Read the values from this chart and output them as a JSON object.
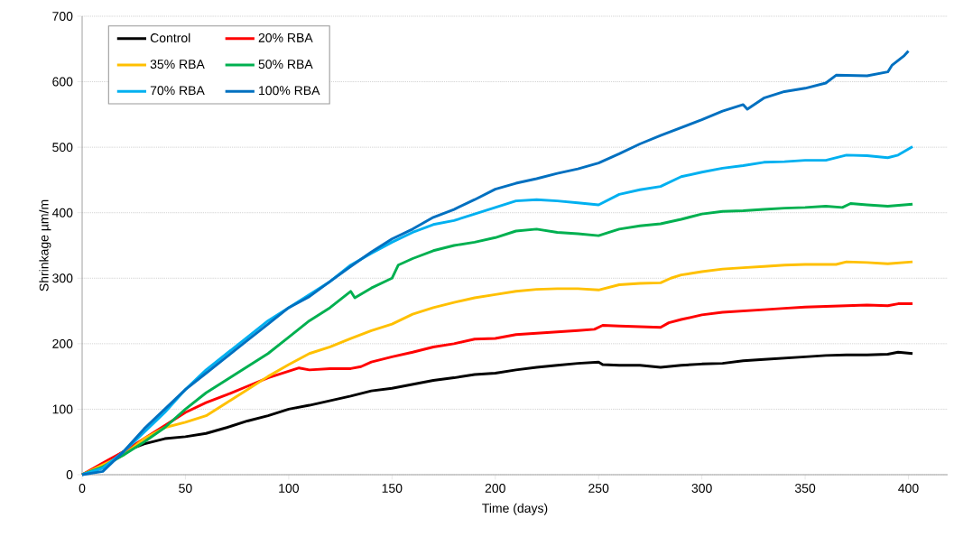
{
  "chart_data": {
    "type": "line",
    "xlabel": "Time (days)",
    "ylabel": "Shrinkage µm/m",
    "xlim": [
      0,
      419
    ],
    "ylim": [
      0,
      700
    ],
    "xticks": [
      0,
      50,
      100,
      150,
      200,
      250,
      300,
      350,
      400
    ],
    "yticks": [
      0,
      100,
      200,
      300,
      400,
      500,
      600,
      700
    ],
    "grid": "y",
    "legend": "top left",
    "marker": "none",
    "line_style": "solid",
    "series": [
      {
        "name": "Control",
        "color": "#000000",
        "x": [
          0,
          10,
          20,
          30,
          40,
          50,
          60,
          70,
          80,
          90,
          100,
          110,
          120,
          130,
          140,
          150,
          160,
          170,
          180,
          190,
          200,
          210,
          220,
          230,
          240,
          250,
          252,
          260,
          270,
          280,
          290,
          300,
          310,
          320,
          330,
          340,
          350,
          360,
          370,
          380,
          390,
          395,
          402
        ],
        "values": [
          0,
          15,
          35,
          47,
          55,
          58,
          63,
          72,
          82,
          90,
          100,
          106,
          113,
          120,
          128,
          132,
          138,
          144,
          148,
          153,
          155,
          160,
          164,
          167,
          170,
          172,
          168,
          167,
          167,
          164,
          167,
          169,
          170,
          174,
          176,
          178,
          180,
          182,
          183,
          183,
          184,
          187,
          185
        ]
      },
      {
        "name": "20% RBA",
        "color": "#ff0000",
        "x": [
          0,
          10,
          20,
          30,
          40,
          50,
          60,
          70,
          80,
          90,
          100,
          105,
          110,
          120,
          130,
          135,
          140,
          150,
          160,
          170,
          180,
          190,
          200,
          210,
          220,
          230,
          240,
          248,
          252,
          260,
          270,
          280,
          284,
          290,
          300,
          310,
          320,
          330,
          340,
          350,
          360,
          370,
          380,
          390,
          395,
          402
        ],
        "values": [
          0,
          18,
          35,
          55,
          75,
          95,
          110,
          122,
          135,
          148,
          158,
          163,
          160,
          162,
          162,
          165,
          172,
          180,
          187,
          195,
          200,
          207,
          208,
          214,
          216,
          218,
          220,
          222,
          228,
          227,
          226,
          225,
          232,
          237,
          244,
          248,
          250,
          252,
          254,
          256,
          257,
          258,
          259,
          258,
          261,
          261
        ]
      },
      {
        "name": "35% RBA",
        "color": "#ffc000",
        "x": [
          0,
          10,
          20,
          30,
          40,
          50,
          60,
          70,
          80,
          90,
          100,
          110,
          120,
          130,
          140,
          150,
          160,
          170,
          180,
          190,
          200,
          210,
          220,
          230,
          240,
          250,
          260,
          270,
          280,
          285,
          290,
          300,
          310,
          320,
          330,
          340,
          350,
          360,
          365,
          370,
          380,
          390,
          402
        ],
        "values": [
          0,
          15,
          30,
          55,
          72,
          80,
          90,
          110,
          130,
          150,
          168,
          185,
          195,
          208,
          220,
          230,
          245,
          255,
          263,
          270,
          275,
          280,
          283,
          284,
          284,
          282,
          290,
          292,
          293,
          300,
          305,
          310,
          314,
          316,
          318,
          320,
          321,
          321,
          321,
          325,
          324,
          322,
          325
        ]
      },
      {
        "name": "50% RBA",
        "color": "#00b050",
        "x": [
          0,
          10,
          20,
          30,
          40,
          50,
          60,
          70,
          80,
          90,
          100,
          110,
          120,
          130,
          132,
          140,
          150,
          153,
          160,
          170,
          180,
          190,
          200,
          210,
          220,
          230,
          240,
          250,
          260,
          270,
          280,
          290,
          300,
          310,
          320,
          330,
          340,
          350,
          360,
          368,
          372,
          380,
          390,
          402
        ],
        "values": [
          0,
          12,
          30,
          50,
          72,
          100,
          125,
          145,
          165,
          185,
          210,
          235,
          255,
          280,
          270,
          285,
          300,
          320,
          330,
          342,
          350,
          355,
          362,
          372,
          375,
          370,
          368,
          365,
          375,
          380,
          383,
          390,
          398,
          402,
          403,
          405,
          407,
          408,
          410,
          408,
          414,
          412,
          410,
          413
        ]
      },
      {
        "name": "70% RBA",
        "color": "#00b0f0",
        "x": [
          0,
          10,
          20,
          30,
          40,
          50,
          60,
          70,
          80,
          90,
          100,
          110,
          120,
          130,
          140,
          150,
          160,
          170,
          180,
          190,
          200,
          210,
          220,
          230,
          240,
          250,
          260,
          270,
          280,
          290,
          300,
          310,
          320,
          330,
          340,
          350,
          360,
          370,
          380,
          390,
          395,
          402
        ],
        "values": [
          0,
          10,
          35,
          65,
          95,
          130,
          160,
          185,
          210,
          235,
          255,
          275,
          295,
          320,
          338,
          355,
          370,
          382,
          388,
          398,
          408,
          418,
          420,
          418,
          415,
          412,
          428,
          435,
          440,
          455,
          462,
          468,
          472,
          477,
          478,
          480,
          480,
          488,
          487,
          484,
          488,
          501
        ]
      },
      {
        "name": "100% RBA",
        "color": "#0070c0",
        "x": [
          0,
          10,
          20,
          30,
          40,
          50,
          60,
          70,
          80,
          90,
          100,
          110,
          120,
          130,
          140,
          150,
          160,
          170,
          180,
          190,
          200,
          210,
          220,
          230,
          240,
          250,
          260,
          270,
          280,
          290,
          300,
          310,
          320,
          322,
          330,
          340,
          350,
          360,
          365,
          380,
          390,
          392,
          398,
          400
        ],
        "values": [
          0,
          5,
          35,
          70,
          100,
          130,
          155,
          180,
          205,
          230,
          255,
          272,
          295,
          318,
          340,
          360,
          375,
          393,
          405,
          420,
          436,
          445,
          452,
          460,
          467,
          476,
          490,
          505,
          518,
          530,
          542,
          555,
          565,
          558,
          575,
          585,
          590,
          598,
          610,
          609,
          615,
          625,
          640,
          647
        ]
      }
    ]
  }
}
